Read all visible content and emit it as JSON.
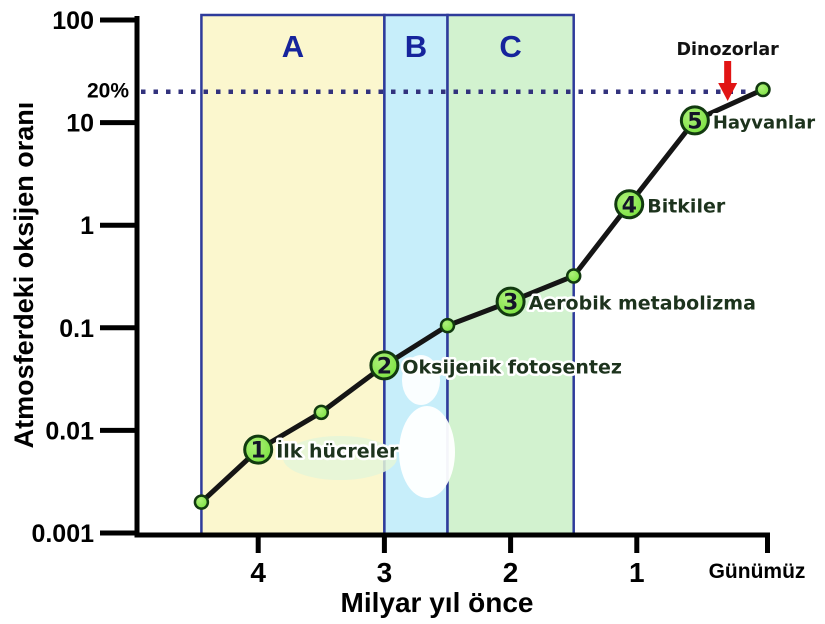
{
  "page": {
    "background": "#ffffff"
  },
  "chart_data": {
    "type": "line",
    "title": "",
    "y_axis": {
      "label": "Atmosferdeki oksijen oranı",
      "scale": "log",
      "range": [
        0.001,
        100
      ],
      "tick_values": [
        100,
        10,
        1,
        0.1,
        0.01,
        0.001
      ],
      "tick_labels": [
        "100",
        "10",
        "1",
        "0.1",
        "0.01",
        "0.001"
      ],
      "reference": {
        "label": "20%",
        "value": 20
      }
    },
    "x_axis": {
      "label": "Milyar yıl önce",
      "direction": "reversed",
      "tick_values": [
        4,
        3,
        2,
        1
      ],
      "tick_labels": [
        "4",
        "3",
        "2",
        "1"
      ],
      "end_label": "Günümüz",
      "end_value": 0
    },
    "reference_line": {
      "value": 20,
      "style": "dotted",
      "color": "#32327d"
    },
    "bands": [
      {
        "label": "A",
        "from": 4.45,
        "to": 3.0,
        "fill": "#fbf7ce"
      },
      {
        "label": "B",
        "from": 3.0,
        "to": 2.5,
        "fill": "#c7eefa"
      },
      {
        "label": "C",
        "from": 2.5,
        "to": 1.5,
        "fill": "#d2f2cf"
      }
    ],
    "styles": {
      "band_border": "#2e3b9b",
      "band_letter": "#16249c",
      "line": "#151515",
      "marker_fill": "#77e23c",
      "marker_fill_light": "#aef07a",
      "marker_stroke": "#123a10",
      "event_label_fill": "#1d331d",
      "event_label_outline": "#ffffff",
      "number_fill": "#141428",
      "axis": "#000000",
      "annotation_arrow": "#e11414"
    },
    "series": [
      {
        "name": "Atmosferdeki oksijen oranı",
        "points": [
          {
            "x": 4.45,
            "y": 0.002,
            "marker": "small"
          },
          {
            "x": 4.0,
            "y": 0.0065,
            "marker": "big",
            "number": "1",
            "label": "İlk hücreler"
          },
          {
            "x": 3.5,
            "y": 0.015,
            "marker": "small"
          },
          {
            "x": 3.0,
            "y": 0.043,
            "marker": "big",
            "number": "2",
            "label": "Oksijenik fotosentez"
          },
          {
            "x": 2.5,
            "y": 0.105,
            "marker": "small"
          },
          {
            "x": 2.0,
            "y": 0.18,
            "marker": "big",
            "number": "3",
            "label": "Aerobik metabolizma"
          },
          {
            "x": 1.5,
            "y": 0.32,
            "marker": "small"
          },
          {
            "x": 1.06,
            "y": 1.6,
            "marker": "big",
            "number": "4",
            "label": "Bitkiler"
          },
          {
            "x": 0.54,
            "y": 10.5,
            "marker": "big",
            "number": "5",
            "label": "Hayvanlar"
          },
          {
            "x": 0.0,
            "y": 21,
            "marker": "small"
          }
        ]
      }
    ],
    "annotations": [
      {
        "text": "Dinozorlar",
        "x": 0.28,
        "points_to_value": 20,
        "arrow": true
      }
    ]
  }
}
